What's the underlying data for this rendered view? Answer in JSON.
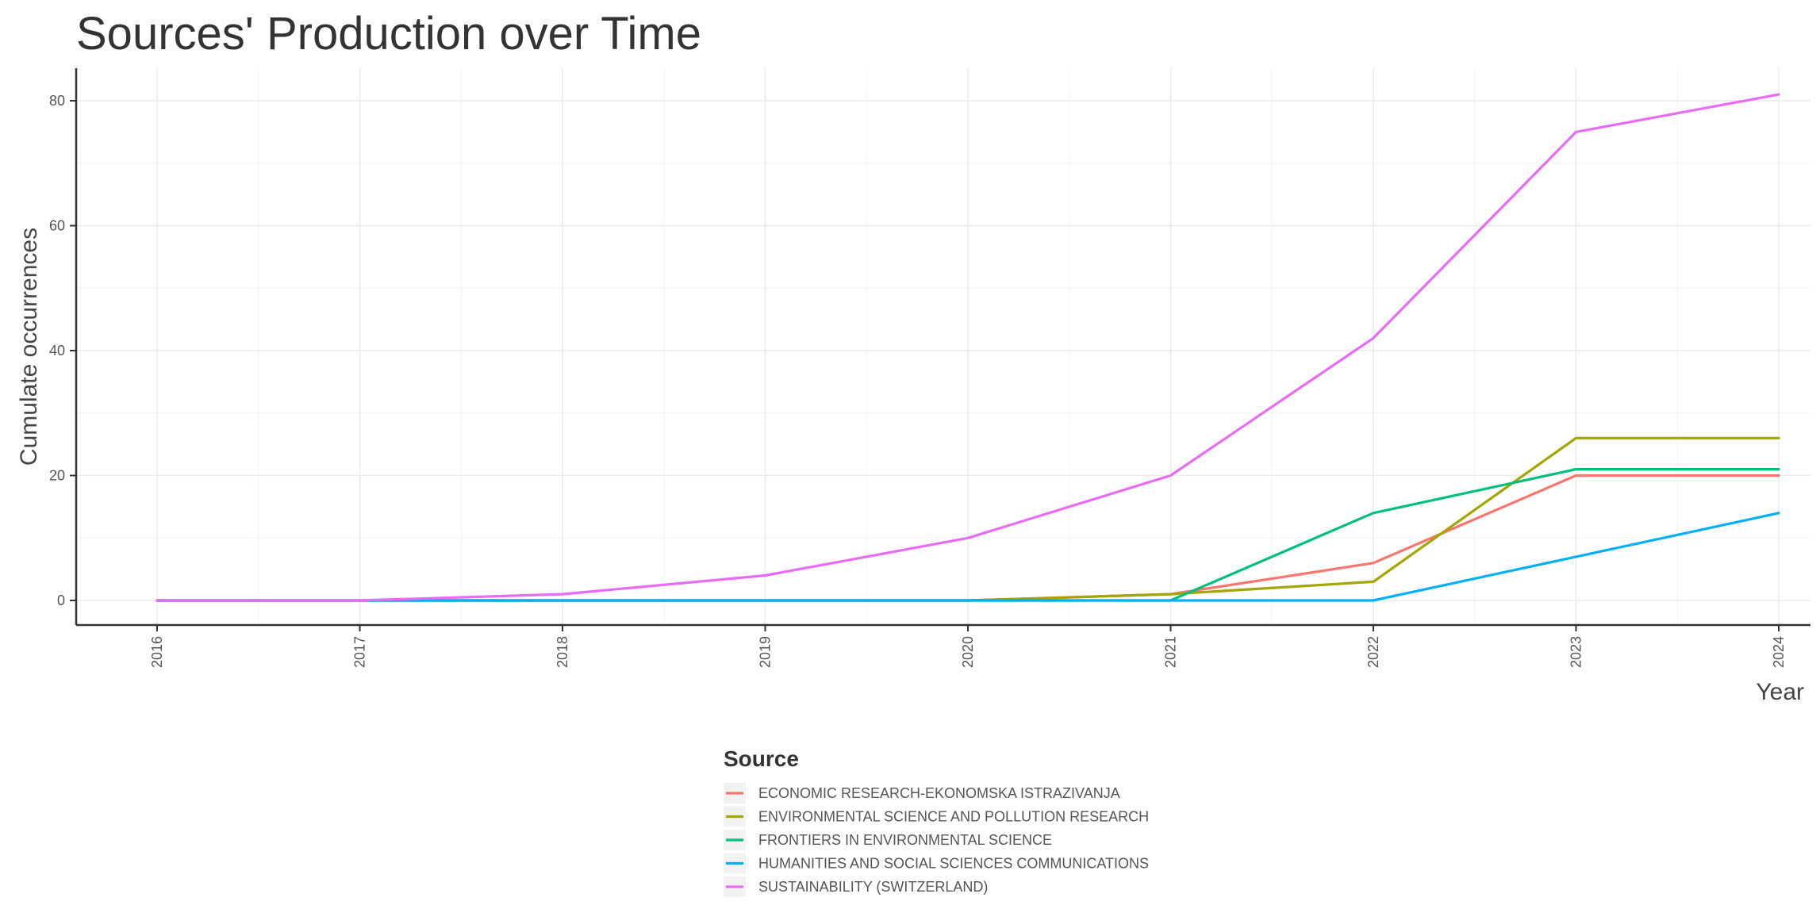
{
  "chart_data": {
    "type": "line",
    "title": "Sources' Production over Time",
    "xlabel": "Year",
    "ylabel": "Cumulate occurrences",
    "x": [
      2016,
      2017,
      2018,
      2019,
      2020,
      2021,
      2022,
      2023,
      2024
    ],
    "x_tick_labels": [
      "2016",
      "2017",
      "2018",
      "2019",
      "2020",
      "2021",
      "2022",
      "2023",
      "2024"
    ],
    "y_ticks": [
      0,
      20,
      40,
      60,
      80
    ],
    "y_tick_labels": [
      "0",
      "20",
      "40",
      "60",
      "80"
    ],
    "xlim": [
      2016,
      2024
    ],
    "ylim": [
      0,
      85
    ],
    "grid": true,
    "legend_title": "Source",
    "legend_position": "bottom",
    "series": [
      {
        "name": "ECONOMIC RESEARCH-EKONOMSKA ISTRAZIVANJA",
        "color": "#F8766D",
        "values": [
          0,
          0,
          0,
          0,
          0,
          1,
          6,
          20,
          20
        ]
      },
      {
        "name": "ENVIRONMENTAL SCIENCE AND POLLUTION RESEARCH",
        "color": "#A3A500",
        "values": [
          0,
          0,
          0,
          0,
          0,
          1,
          3,
          26,
          26
        ]
      },
      {
        "name": "FRONTIERS IN ENVIRONMENTAL SCIENCE",
        "color": "#00BF7D",
        "values": [
          0,
          0,
          0,
          0,
          0,
          0,
          14,
          21,
          21
        ]
      },
      {
        "name": "HUMANITIES AND SOCIAL SCIENCES COMMUNICATIONS",
        "color": "#00B0F6",
        "values": [
          0,
          0,
          0,
          0,
          0,
          0,
          0,
          7,
          14
        ]
      },
      {
        "name": "SUSTAINABILITY (SWITZERLAND)",
        "color": "#E76BF3",
        "values": [
          0,
          0,
          1,
          4,
          10,
          20,
          42,
          75,
          81
        ]
      }
    ]
  }
}
